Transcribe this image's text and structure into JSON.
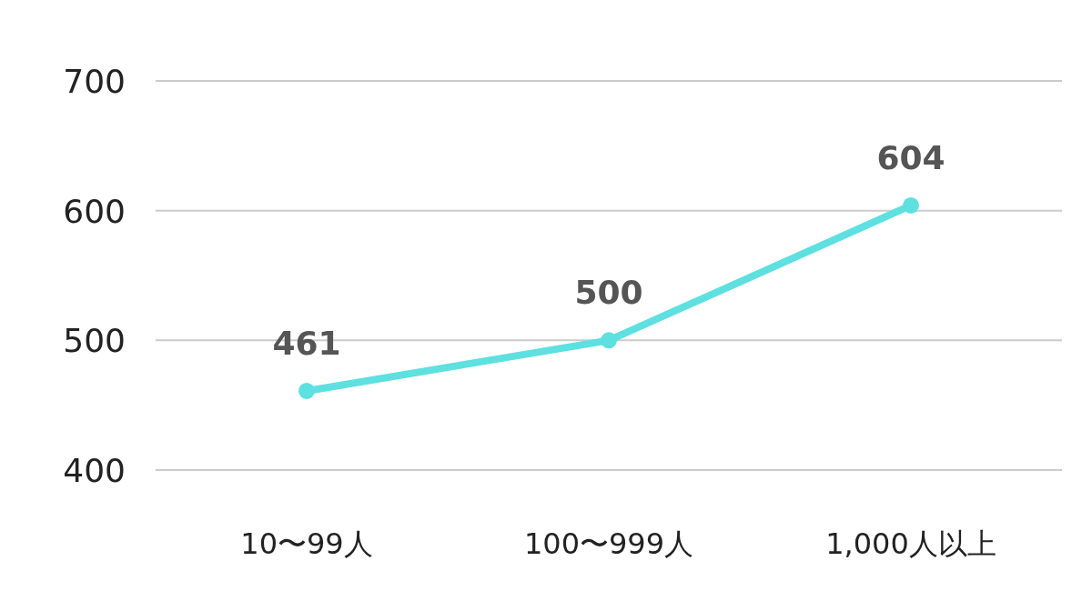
{
  "chart_data": {
    "type": "line",
    "categories": [
      "10〜99人",
      "100〜999人",
      "1,000人以上"
    ],
    "series": [
      {
        "color": "#5ee0e0",
        "values": [
          461,
          500,
          604
        ]
      }
    ],
    "ylim": [
      400,
      700
    ],
    "yticks": [
      400,
      500,
      600,
      700
    ],
    "grid": "y",
    "marker": "circle",
    "line_style": "solid",
    "data_labels": true
  }
}
